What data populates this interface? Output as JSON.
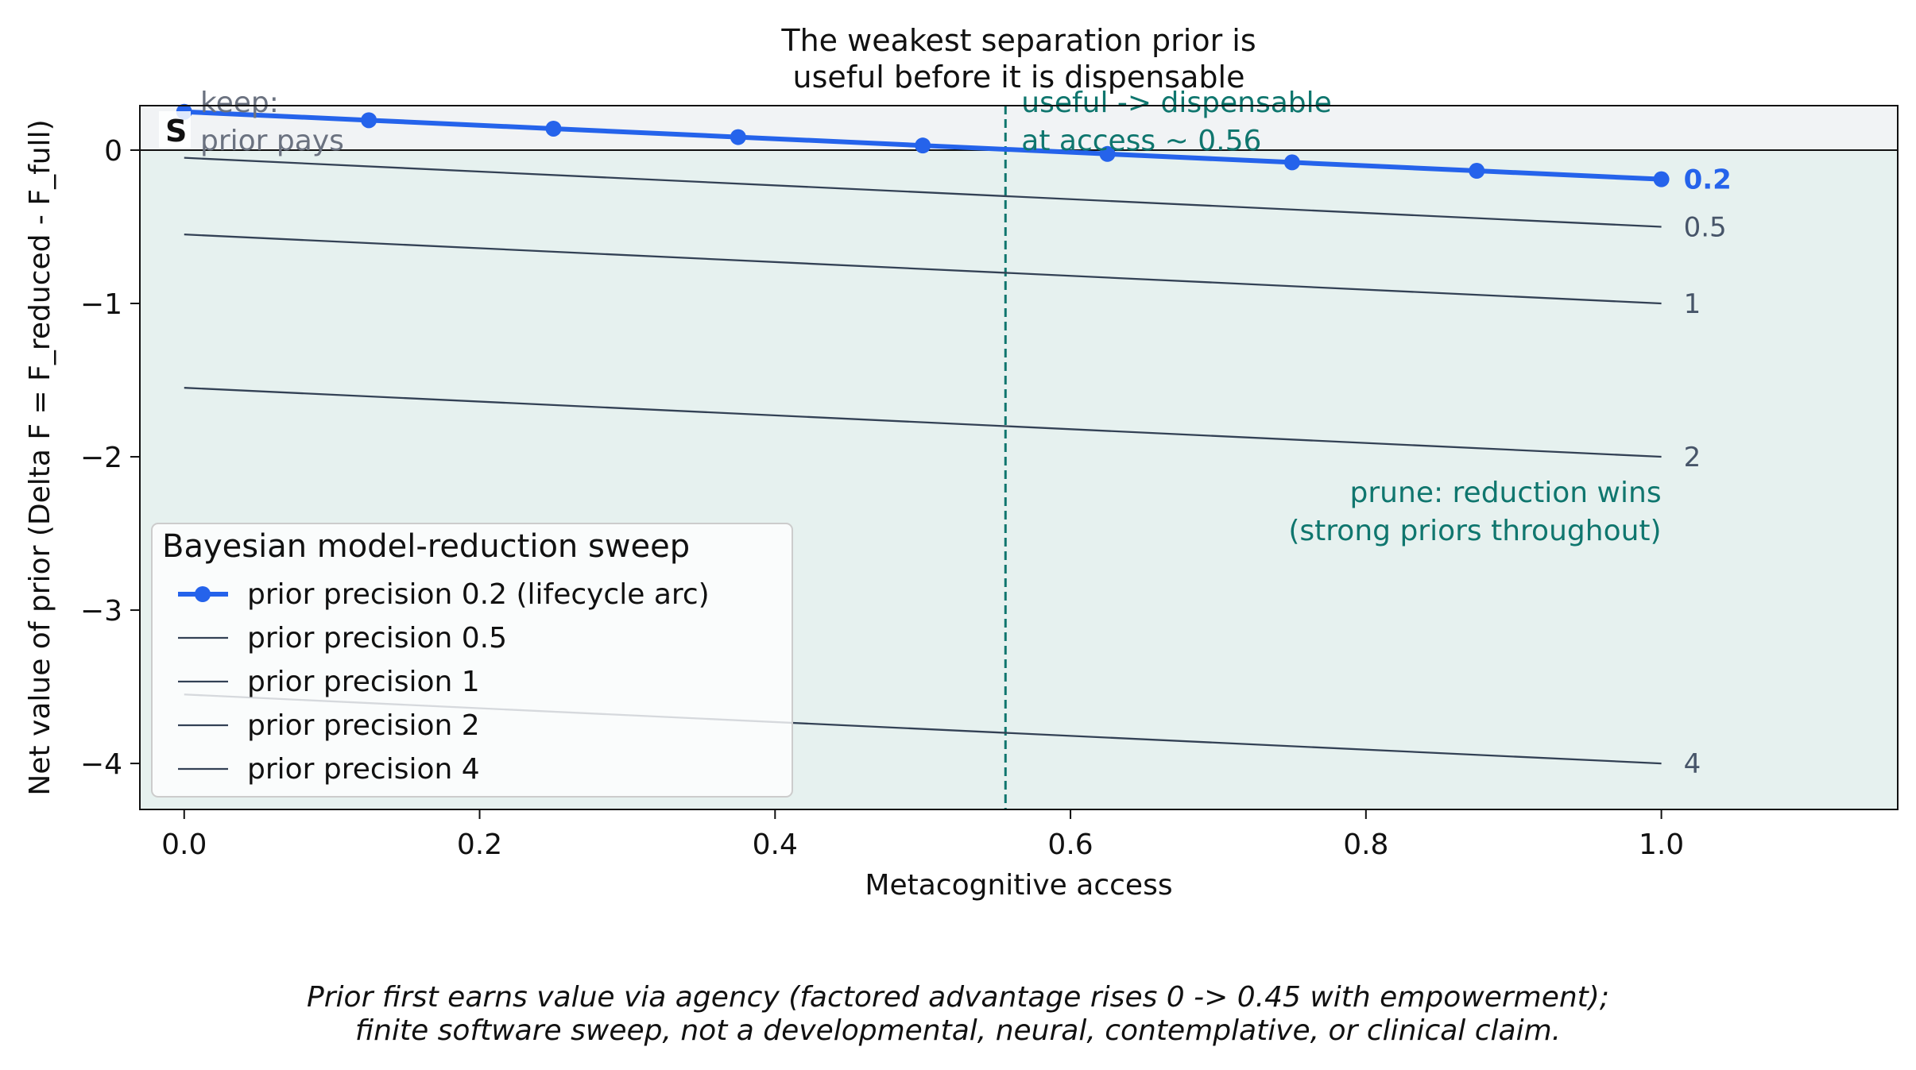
{
  "chart_data": {
    "type": "line",
    "title_lines": [
      "The weakest separation prior is",
      "useful before it is dispensable"
    ],
    "xlabel": "Metacognitive access",
    "ylabel": "Net value of prior  (Delta F = F_reduced - F_full)",
    "xlim": [
      -0.03,
      1.16
    ],
    "ylim": [
      -4.3,
      0.29
    ],
    "x_ticks": [
      "0.0",
      "0.2",
      "0.4",
      "0.6",
      "0.8",
      "1.0"
    ],
    "y_ticks": [
      "0",
      "−1",
      "−2",
      "−3",
      "−4"
    ],
    "grid": false,
    "legend": {
      "title": "Bayesian model-reduction sweep",
      "position": "lower-left"
    },
    "series": [
      {
        "name": "prior precision 0.2 (lifecycle arc)",
        "end_label": "0.2",
        "color": "#2563eb",
        "markers": true,
        "x": [
          0,
          0.125,
          0.25,
          0.375,
          0.5,
          0.625,
          0.75,
          0.875,
          1.0
        ],
        "y": [
          0.25,
          0.195,
          0.14,
          0.085,
          0.03,
          -0.025,
          -0.08,
          -0.135,
          -0.19
        ]
      },
      {
        "name": "prior precision 0.5",
        "end_label": "0.5",
        "color": "#334155",
        "markers": false,
        "x": [
          0,
          1.0
        ],
        "y": [
          -0.05,
          -0.5
        ]
      },
      {
        "name": "prior precision 1",
        "end_label": "1",
        "color": "#334155",
        "markers": false,
        "x": [
          0,
          1.0
        ],
        "y": [
          -0.55,
          -1.0
        ]
      },
      {
        "name": "prior precision 2",
        "end_label": "2",
        "color": "#334155",
        "markers": false,
        "x": [
          0,
          1.0
        ],
        "y": [
          -1.55,
          -2.0
        ]
      },
      {
        "name": "prior precision 4",
        "end_label": "4",
        "color": "#334155",
        "markers": false,
        "x": [
          0,
          1.0
        ],
        "y": [
          -3.55,
          -4.0
        ]
      }
    ],
    "threshold": {
      "x": 0.556,
      "color": "#0f766e",
      "label_lines": [
        "useful -> dispensable",
        "at access ~ 0.56"
      ]
    },
    "regions": {
      "keep": {
        "color": "#f1f3f5",
        "label_lines": [
          "keep:",
          "prior pays"
        ]
      },
      "prune": {
        "color": "#e6f1ef",
        "label_lines": [
          "prune: reduction wins",
          "(strong priors throughout)"
        ]
      }
    },
    "panel_marker": "S"
  },
  "caption_lines": [
    "Prior first earns value via agency (factored advantage rises 0 -> 0.45 with empowerment);",
    "finite software sweep, not a developmental, neural, contemplative, or clinical claim."
  ]
}
